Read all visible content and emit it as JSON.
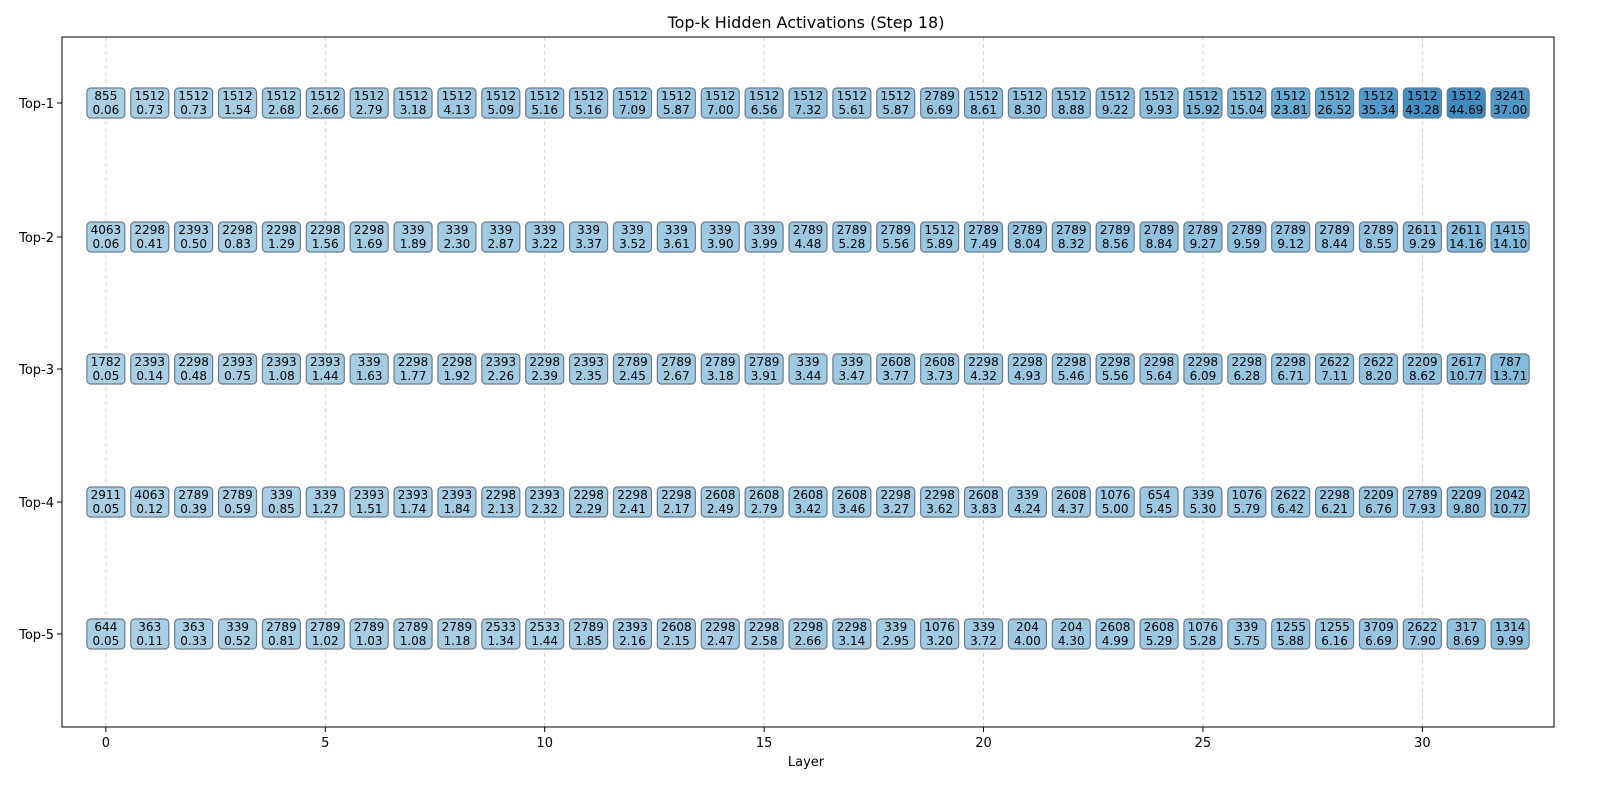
{
  "chart_data": {
    "type": "table",
    "title": "Top-k Hidden Activations (Step 18)",
    "xlabel": "Layer",
    "ylabel": "",
    "x_ticks": [
      0,
      5,
      10,
      15,
      20,
      25,
      30
    ],
    "row_labels": [
      "Top-1",
      "Top-2",
      "Top-3",
      "Top-4",
      "Top-5"
    ],
    "layers": [
      0,
      1,
      2,
      3,
      4,
      5,
      6,
      7,
      8,
      9,
      10,
      11,
      12,
      13,
      14,
      15,
      16,
      17,
      18,
      19,
      20,
      21,
      22,
      23,
      24,
      25,
      26,
      27,
      28,
      29,
      30,
      31,
      32
    ],
    "rows": [
      {
        "label": "Top-1",
        "ids": [
          855,
          1512,
          1512,
          1512,
          1512,
          1512,
          1512,
          1512,
          1512,
          1512,
          1512,
          1512,
          1512,
          1512,
          1512,
          1512,
          1512,
          1512,
          1512,
          2789,
          1512,
          1512,
          1512,
          1512,
          1512,
          1512,
          1512,
          1512,
          1512,
          1512,
          1512,
          1512,
          3241
        ],
        "values": [
          "0.06",
          "0.73",
          "0.73",
          "1.54",
          "2.68",
          "2.66",
          "2.79",
          "3.18",
          "4.13",
          "5.09",
          "5.16",
          "5.16",
          "7.09",
          "5.87",
          "7.00",
          "6.56",
          "7.32",
          "5.61",
          "5.87",
          "6.69",
          "8.61",
          "8.30",
          "8.88",
          "9.22",
          "9.93",
          "15.92",
          "15.04",
          "23.81",
          "26.52",
          "35.34",
          "43.28",
          "44.69",
          "37.00"
        ]
      },
      {
        "label": "Top-2",
        "ids": [
          4063,
          2298,
          2393,
          2298,
          2298,
          2298,
          2298,
          339,
          339,
          339,
          339,
          339,
          339,
          339,
          339,
          339,
          2789,
          2789,
          2789,
          1512,
          2789,
          2789,
          2789,
          2789,
          2789,
          2789,
          2789,
          2789,
          2789,
          2789,
          2611,
          2611,
          1415
        ],
        "values": [
          "0.06",
          "0.41",
          "0.50",
          "0.83",
          "1.29",
          "1.56",
          "1.69",
          "1.89",
          "2.30",
          "2.87",
          "3.22",
          "3.37",
          "3.52",
          "3.61",
          "3.90",
          "3.99",
          "4.48",
          "5.28",
          "5.56",
          "5.89",
          "7.49",
          "8.04",
          "8.32",
          "8.56",
          "8.84",
          "9.27",
          "9.59",
          "9.12",
          "8.44",
          "8.55",
          "9.29",
          "14.16",
          "14.10"
        ]
      },
      {
        "label": "Top-3",
        "ids": [
          1782,
          2393,
          2298,
          2393,
          2393,
          2393,
          339,
          2298,
          2298,
          2393,
          2298,
          2393,
          2789,
          2789,
          2789,
          2789,
          339,
          339,
          2608,
          2608,
          2298,
          2298,
          2298,
          2298,
          2298,
          2298,
          2298,
          2298,
          2622,
          2622,
          2209,
          2617,
          787
        ],
        "values": [
          "0.05",
          "0.14",
          "0.48",
          "0.75",
          "1.08",
          "1.44",
          "1.63",
          "1.77",
          "1.92",
          "2.26",
          "2.39",
          "2.35",
          "2.45",
          "2.67",
          "3.18",
          "3.91",
          "3.44",
          "3.47",
          "3.77",
          "3.73",
          "4.32",
          "4.93",
          "5.46",
          "5.56",
          "5.64",
          "6.09",
          "6.28",
          "6.71",
          "7.11",
          "8.20",
          "8.62",
          "10.77",
          "13.71"
        ]
      },
      {
        "label": "Top-4",
        "ids": [
          2911,
          4063,
          2789,
          2789,
          339,
          339,
          2393,
          2393,
          2393,
          2298,
          2393,
          2298,
          2298,
          2298,
          2608,
          2608,
          2608,
          2608,
          2298,
          2298,
          2608,
          339,
          2608,
          1076,
          654,
          339,
          1076,
          2622,
          2298,
          2209,
          2789,
          2209,
          2042
        ],
        "values": [
          "0.05",
          "0.12",
          "0.39",
          "0.59",
          "0.85",
          "1.27",
          "1.51",
          "1.74",
          "1.84",
          "2.13",
          "2.32",
          "2.29",
          "2.41",
          "2.17",
          "2.49",
          "2.79",
          "3.42",
          "3.46",
          "3.27",
          "3.62",
          "3.83",
          "4.24",
          "4.37",
          "5.00",
          "5.45",
          "5.30",
          "5.79",
          "6.42",
          "6.21",
          "6.76",
          "7.93",
          "9.80",
          "10.77"
        ]
      },
      {
        "label": "Top-5",
        "ids": [
          644,
          363,
          363,
          339,
          2789,
          2789,
          2789,
          2789,
          2789,
          2533,
          2533,
          2789,
          2393,
          2608,
          2298,
          2298,
          2298,
          2298,
          339,
          1076,
          339,
          204,
          204,
          2608,
          2608,
          1076,
          339,
          1255,
          1255,
          3709,
          2622,
          317,
          1314
        ],
        "values": [
          "0.05",
          "0.11",
          "0.33",
          "0.52",
          "0.81",
          "1.02",
          "1.03",
          "1.08",
          "1.18",
          "1.34",
          "1.44",
          "1.85",
          "2.16",
          "2.15",
          "2.47",
          "2.58",
          "2.66",
          "3.14",
          "2.95",
          "3.20",
          "3.72",
          "4.00",
          "4.30",
          "4.99",
          "5.29",
          "5.28",
          "5.75",
          "5.88",
          "6.16",
          "6.69",
          "7.90",
          "8.69",
          "9.99"
        ]
      }
    ],
    "color_scale": {
      "low": "#a9cfe5",
      "mid": "#6aaed6",
      "high": "#3d8dc4",
      "domain": [
        0,
        44.69
      ]
    },
    "box_border_color": "#6b7b8a",
    "grid": "vertical-dashed"
  }
}
